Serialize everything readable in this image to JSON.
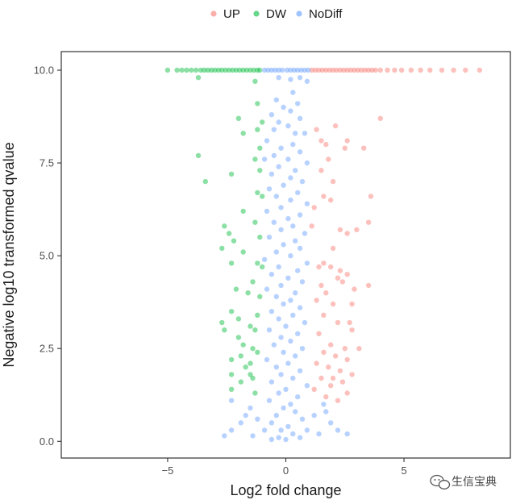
{
  "chart_data": {
    "type": "scatter",
    "xlabel": "Log2 fold change",
    "ylabel": "Negative log10 transformed qvalue",
    "xlim": [
      -9.5,
      9.5
    ],
    "ylim": [
      -0.45,
      10.5
    ],
    "xticks": [
      -5,
      0,
      5
    ],
    "yticks": [
      0.0,
      2.5,
      5.0,
      7.5,
      10.0
    ],
    "xtick_labels": [
      "−5",
      "0",
      "5"
    ],
    "ytick_labels": [
      "0.0",
      "2.5",
      "5.0",
      "7.5",
      "10.0"
    ],
    "grid": false,
    "legend_position": "top",
    "point_opacity": 0.45,
    "series": [
      {
        "name": "UP",
        "color": "#F8766D",
        "points": [
          [
            1.1,
            10
          ],
          [
            1.25,
            10
          ],
          [
            1.4,
            10
          ],
          [
            1.55,
            10
          ],
          [
            1.7,
            10
          ],
          [
            1.85,
            10
          ],
          [
            2.0,
            10
          ],
          [
            2.15,
            10
          ],
          [
            2.3,
            10
          ],
          [
            2.45,
            10
          ],
          [
            2.6,
            10
          ],
          [
            2.75,
            10
          ],
          [
            2.9,
            10
          ],
          [
            3.05,
            10
          ],
          [
            3.2,
            10
          ],
          [
            3.35,
            10
          ],
          [
            3.5,
            10
          ],
          [
            3.65,
            10
          ],
          [
            3.8,
            10
          ],
          [
            4.0,
            10
          ],
          [
            4.3,
            10
          ],
          [
            4.6,
            10
          ],
          [
            4.9,
            10
          ],
          [
            5.3,
            10
          ],
          [
            5.7,
            10
          ],
          [
            6.1,
            10
          ],
          [
            6.6,
            10
          ],
          [
            7.1,
            10
          ],
          [
            7.6,
            10
          ],
          [
            8.2,
            10
          ],
          [
            4.0,
            8.7
          ],
          [
            2.1,
            8.5
          ],
          [
            1.3,
            8.4
          ],
          [
            1.5,
            8.1
          ],
          [
            1.7,
            8.0
          ],
          [
            2.6,
            8.1
          ],
          [
            2.5,
            7.9
          ],
          [
            1.8,
            7.6
          ],
          [
            3.3,
            7.9
          ],
          [
            1.5,
            7.3
          ],
          [
            2.0,
            7.0
          ],
          [
            1.6,
            6.6
          ],
          [
            1.9,
            6.5
          ],
          [
            3.6,
            6.6
          ],
          [
            1.2,
            6.3
          ],
          [
            1.1,
            5.8
          ],
          [
            2.3,
            5.7
          ],
          [
            2.6,
            5.6
          ],
          [
            3.5,
            5.9
          ],
          [
            3.0,
            5.7
          ],
          [
            2.0,
            5.2
          ],
          [
            1.6,
            4.8
          ],
          [
            1.4,
            4.7
          ],
          [
            1.9,
            4.7
          ],
          [
            2.3,
            4.6
          ],
          [
            2.6,
            4.5
          ],
          [
            2.2,
            4.4
          ],
          [
            1.5,
            4.2
          ],
          [
            1.7,
            4.0
          ],
          [
            2.4,
            4.3
          ],
          [
            3.5,
            4.2
          ],
          [
            2.9,
            4.1
          ],
          [
            1.3,
            3.8
          ],
          [
            2.0,
            3.7
          ],
          [
            2.8,
            3.7
          ],
          [
            1.6,
            3.4
          ],
          [
            2.2,
            3.2
          ],
          [
            2.7,
            3.2
          ],
          [
            2.8,
            3.0
          ],
          [
            1.4,
            2.9
          ],
          [
            1.9,
            2.6
          ],
          [
            2.5,
            2.5
          ],
          [
            1.6,
            2.4
          ],
          [
            2.1,
            2.3
          ],
          [
            2.6,
            2.2
          ],
          [
            3.1,
            2.5
          ],
          [
            1.3,
            2.1
          ],
          [
            1.8,
            2.0
          ],
          [
            2.3,
            1.9
          ],
          [
            2.8,
            1.8
          ],
          [
            1.5,
            1.7
          ],
          [
            2.0,
            1.7
          ],
          [
            2.4,
            1.6
          ],
          [
            1.9,
            1.5
          ],
          [
            2.6,
            1.3
          ],
          [
            1.2,
            1.4
          ],
          [
            1.7,
            1.2
          ],
          [
            2.2,
            1.1
          ]
        ]
      },
      {
        "name": "DW",
        "color": "#00BA38",
        "points": [
          [
            -5.0,
            10
          ],
          [
            -4.6,
            10
          ],
          [
            -4.4,
            10
          ],
          [
            -4.2,
            10
          ],
          [
            -4.0,
            10
          ],
          [
            -3.8,
            10
          ],
          [
            -3.6,
            10
          ],
          [
            -3.45,
            10
          ],
          [
            -3.3,
            10
          ],
          [
            -3.15,
            10
          ],
          [
            -3.0,
            10
          ],
          [
            -2.85,
            10
          ],
          [
            -2.7,
            10
          ],
          [
            -2.55,
            10
          ],
          [
            -2.4,
            10
          ],
          [
            -2.25,
            10
          ],
          [
            -2.1,
            10
          ],
          [
            -1.95,
            10
          ],
          [
            -1.8,
            10
          ],
          [
            -1.65,
            10
          ],
          [
            -1.5,
            10
          ],
          [
            -1.35,
            10
          ],
          [
            -1.2,
            10
          ],
          [
            -1.1,
            10
          ],
          [
            -3.7,
            9.8
          ],
          [
            -1.3,
            9.7
          ],
          [
            -1.2,
            9.1
          ],
          [
            -2.0,
            8.7
          ],
          [
            -1.0,
            8.6
          ],
          [
            -1.2,
            8.4
          ],
          [
            -1.8,
            8.3
          ],
          [
            -1.1,
            7.9
          ],
          [
            -3.7,
            7.7
          ],
          [
            -1.3,
            7.6
          ],
          [
            -1.1,
            7.3
          ],
          [
            -2.3,
            7.2
          ],
          [
            -3.4,
            7.0
          ],
          [
            -1.2,
            6.7
          ],
          [
            -1.0,
            6.6
          ],
          [
            -1.8,
            6.2
          ],
          [
            -1.3,
            5.9
          ],
          [
            -2.6,
            5.8
          ],
          [
            -2.4,
            5.6
          ],
          [
            -2.2,
            5.4
          ],
          [
            -1.1,
            5.5
          ],
          [
            -2.7,
            5.2
          ],
          [
            -1.8,
            5.1
          ],
          [
            -2.3,
            4.8
          ],
          [
            -1.2,
            4.8
          ],
          [
            -1.0,
            4.7
          ],
          [
            -1.4,
            4.3
          ],
          [
            -2.1,
            4.1
          ],
          [
            -1.6,
            4.0
          ],
          [
            -1.1,
            3.9
          ],
          [
            -2.3,
            3.5
          ],
          [
            -1.2,
            3.4
          ],
          [
            -2.0,
            3.3
          ],
          [
            -2.7,
            3.2
          ],
          [
            -1.5,
            3.1
          ],
          [
            -2.6,
            3.0
          ],
          [
            -1.3,
            3.0
          ],
          [
            -2.0,
            2.8
          ],
          [
            -1.8,
            2.6
          ],
          [
            -1.4,
            2.5
          ],
          [
            -1.2,
            2.4
          ],
          [
            -1.9,
            2.3
          ],
          [
            -2.3,
            2.2
          ],
          [
            -1.5,
            2.1
          ],
          [
            -1.7,
            2.0
          ],
          [
            -2.3,
            1.8
          ],
          [
            -1.5,
            1.8
          ],
          [
            -1.4,
            1.7
          ],
          [
            -1.9,
            1.6
          ],
          [
            -2.3,
            1.4
          ],
          [
            -1.3,
            1.3
          ]
        ]
      },
      {
        "name": "NoDiff",
        "color": "#619CFF",
        "points": [
          [
            -0.9,
            10
          ],
          [
            -0.75,
            10
          ],
          [
            -0.6,
            10
          ],
          [
            -0.45,
            10
          ],
          [
            -0.3,
            10
          ],
          [
            -0.15,
            10
          ],
          [
            0.05,
            10
          ],
          [
            0.2,
            10
          ],
          [
            0.35,
            10
          ],
          [
            0.5,
            10
          ],
          [
            0.65,
            10
          ],
          [
            0.8,
            10
          ],
          [
            0.95,
            10
          ],
          [
            -0.3,
            9.8
          ],
          [
            0.6,
            9.8
          ],
          [
            0.2,
            9.75
          ],
          [
            0.9,
            9.7
          ],
          [
            0.3,
            9.4
          ],
          [
            -0.4,
            9.2
          ],
          [
            0.5,
            9.1
          ],
          [
            -0.1,
            9.0
          ],
          [
            0.2,
            8.9
          ],
          [
            -0.6,
            8.8
          ],
          [
            0.6,
            8.7
          ],
          [
            -0.3,
            8.6
          ],
          [
            0.1,
            8.5
          ],
          [
            -0.5,
            8.4
          ],
          [
            0.4,
            8.3
          ],
          [
            0.8,
            8.3
          ],
          [
            -0.8,
            8.1
          ],
          [
            0.3,
            8.0
          ],
          [
            -0.2,
            7.9
          ],
          [
            0.6,
            7.8
          ],
          [
            -0.5,
            7.7
          ],
          [
            0.1,
            7.6
          ],
          [
            -0.9,
            7.6
          ],
          [
            0.9,
            7.5
          ],
          [
            -0.3,
            7.4
          ],
          [
            0.4,
            7.3
          ],
          [
            -0.6,
            7.2
          ],
          [
            0.2,
            7.1
          ],
          [
            0.7,
            7.0
          ],
          [
            -0.1,
            6.9
          ],
          [
            -0.7,
            6.8
          ],
          [
            0.5,
            6.7
          ],
          [
            -0.4,
            6.6
          ],
          [
            0.2,
            6.5
          ],
          [
            0.9,
            6.4
          ],
          [
            -0.2,
            6.3
          ],
          [
            -0.8,
            6.2
          ],
          [
            0.6,
            6.1
          ],
          [
            0.1,
            6.0
          ],
          [
            -0.5,
            5.9
          ],
          [
            0.3,
            5.8
          ],
          [
            -0.2,
            5.7
          ],
          [
            0.8,
            5.6
          ],
          [
            -0.7,
            5.5
          ],
          [
            0.4,
            5.4
          ],
          [
            -0.1,
            5.3
          ],
          [
            0.6,
            5.2
          ],
          [
            -0.4,
            5.1
          ],
          [
            0.2,
            5.0
          ],
          [
            -0.9,
            4.9
          ],
          [
            0.9,
            4.8
          ],
          [
            -0.3,
            4.7
          ],
          [
            0.5,
            4.6
          ],
          [
            -0.6,
            4.5
          ],
          [
            0.1,
            4.4
          ],
          [
            0.7,
            4.3
          ],
          [
            -0.2,
            4.2
          ],
          [
            -0.8,
            4.1
          ],
          [
            0.4,
            4.0
          ],
          [
            -0.4,
            3.9
          ],
          [
            0.2,
            3.8
          ],
          [
            -0.1,
            3.7
          ],
          [
            0.6,
            3.6
          ],
          [
            -0.6,
            3.5
          ],
          [
            0.3,
            3.4
          ],
          [
            -0.3,
            3.3
          ],
          [
            0.8,
            3.2
          ],
          [
            0.0,
            3.1
          ],
          [
            -0.7,
            3.0
          ],
          [
            0.5,
            2.9
          ],
          [
            -0.2,
            2.8
          ],
          [
            0.2,
            2.7
          ],
          [
            -0.5,
            2.6
          ],
          [
            0.7,
            2.5
          ],
          [
            -0.1,
            2.4
          ],
          [
            0.4,
            2.3
          ],
          [
            -0.8,
            2.2
          ],
          [
            0.1,
            2.1
          ],
          [
            -0.4,
            2.0
          ],
          [
            0.6,
            1.9
          ],
          [
            -0.2,
            1.8
          ],
          [
            0.3,
            1.7
          ],
          [
            -0.6,
            1.6
          ],
          [
            0.9,
            1.5
          ],
          [
            0.0,
            1.4
          ],
          [
            -0.3,
            1.3
          ],
          [
            0.5,
            1.2
          ],
          [
            -0.7,
            1.1
          ],
          [
            0.2,
            1.0
          ],
          [
            -0.1,
            0.9
          ],
          [
            0.4,
            0.8
          ],
          [
            -0.4,
            0.7
          ],
          [
            0.7,
            0.6
          ],
          [
            -0.6,
            0.5
          ],
          [
            0.1,
            0.4
          ],
          [
            -0.2,
            0.3
          ],
          [
            0.3,
            0.2
          ],
          [
            -0.3,
            0.1
          ],
          [
            0.0,
            0.05
          ],
          [
            1.6,
            1.0
          ],
          [
            -1.5,
            0.9
          ],
          [
            1.2,
            0.7
          ],
          [
            -1.2,
            0.6
          ],
          [
            1.9,
            0.5
          ],
          [
            -1.9,
            0.5
          ],
          [
            2.2,
            0.3
          ],
          [
            -2.3,
            0.3
          ],
          [
            2.6,
            0.2
          ],
          [
            -2.6,
            0.15
          ],
          [
            0.9,
            0.3
          ],
          [
            -0.9,
            0.3
          ],
          [
            1.4,
            0.2
          ],
          [
            -1.4,
            0.15
          ],
          [
            0.6,
            0.1
          ],
          [
            -0.6,
            0.05
          ],
          [
            -2.3,
            1.1
          ],
          [
            1.7,
            0.8
          ],
          [
            -1.7,
            0.7
          ]
        ]
      }
    ]
  },
  "watermark": {
    "text": "生信宝典",
    "icon": "wechat-icon"
  }
}
